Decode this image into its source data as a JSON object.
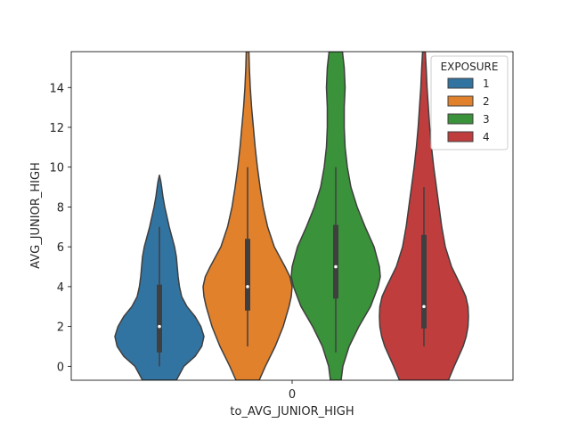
{
  "chart_data": {
    "type": "violin",
    "title": "",
    "xlabel": "to_AVG_JUNIOR_HIGH",
    "ylabel": "AVG_JUNIOR_HIGH",
    "x_ticks": [
      "0"
    ],
    "y_ticks": [
      0,
      2,
      4,
      6,
      8,
      10,
      12,
      14
    ],
    "ylim": [
      -0.7,
      15.8
    ],
    "legend": {
      "title": "EXPOSURE",
      "placement": "top-right"
    },
    "series": [
      {
        "name": "1",
        "color": "#3274a1",
        "min": 0,
        "q1": 0.7,
        "median": 2,
        "q3": 4.1,
        "max": 7,
        "kde_top": 9.6,
        "kde_bottom": -0.7,
        "profile": [
          [
            -0.7,
            0.38
          ],
          [
            0,
            0.55
          ],
          [
            0.5,
            0.8
          ],
          [
            1,
            0.95
          ],
          [
            1.5,
            1.0
          ],
          [
            2,
            0.93
          ],
          [
            2.5,
            0.8
          ],
          [
            3,
            0.62
          ],
          [
            3.5,
            0.5
          ],
          [
            4,
            0.45
          ],
          [
            4.5,
            0.42
          ],
          [
            5,
            0.4
          ],
          [
            5.5,
            0.38
          ],
          [
            6,
            0.34
          ],
          [
            6.5,
            0.28
          ],
          [
            7,
            0.22
          ],
          [
            7.5,
            0.17
          ],
          [
            8,
            0.12
          ],
          [
            8.5,
            0.08
          ],
          [
            9,
            0.05
          ],
          [
            9.3,
            0.03
          ],
          [
            9.6,
            0.0
          ]
        ]
      },
      {
        "name": "2",
        "color": "#e1812c",
        "min": 1,
        "q1": 2.8,
        "median": 4,
        "q3": 6.4,
        "max": 10,
        "kde_top": 15.8,
        "kde_bottom": -0.7,
        "profile": [
          [
            -0.7,
            0.26
          ],
          [
            0,
            0.4
          ],
          [
            1,
            0.62
          ],
          [
            2,
            0.8
          ],
          [
            3,
            0.93
          ],
          [
            3.5,
            0.98
          ],
          [
            4,
            1.0
          ],
          [
            4.5,
            0.95
          ],
          [
            5,
            0.84
          ],
          [
            6,
            0.6
          ],
          [
            7,
            0.45
          ],
          [
            8,
            0.35
          ],
          [
            9,
            0.28
          ],
          [
            10,
            0.22
          ],
          [
            11,
            0.17
          ],
          [
            12,
            0.13
          ],
          [
            13,
            0.09
          ],
          [
            14,
            0.06
          ],
          [
            15,
            0.04
          ],
          [
            15.8,
            0.03
          ]
        ]
      },
      {
        "name": "3",
        "color": "#3a923a",
        "min": 0.7,
        "q1": 3.4,
        "median": 5,
        "q3": 7.1,
        "max": 10,
        "kde_top": 15.8,
        "kde_bottom": -0.7,
        "profile": [
          [
            -0.7,
            0.12
          ],
          [
            0,
            0.16
          ],
          [
            1,
            0.3
          ],
          [
            2,
            0.52
          ],
          [
            3,
            0.78
          ],
          [
            4,
            0.95
          ],
          [
            4.5,
            1.0
          ],
          [
            5,
            0.98
          ],
          [
            6,
            0.86
          ],
          [
            7,
            0.66
          ],
          [
            8,
            0.48
          ],
          [
            9,
            0.34
          ],
          [
            10,
            0.26
          ],
          [
            11,
            0.21
          ],
          [
            12,
            0.19
          ],
          [
            13,
            0.19
          ],
          [
            14,
            0.21
          ],
          [
            15,
            0.19
          ],
          [
            15.8,
            0.15
          ]
        ]
      },
      {
        "name": "4",
        "color": "#c03d3e",
        "min": 1,
        "q1": 1.9,
        "median": 3,
        "q3": 6.6,
        "max": 9,
        "kde_top": 15.8,
        "kde_bottom": -0.7,
        "profile": [
          [
            -0.7,
            0.55
          ],
          [
            0,
            0.68
          ],
          [
            0.5,
            0.78
          ],
          [
            1,
            0.88
          ],
          [
            1.5,
            0.95
          ],
          [
            2,
            0.99
          ],
          [
            2.5,
            1.0
          ],
          [
            3,
            0.99
          ],
          [
            3.5,
            0.94
          ],
          [
            4,
            0.84
          ],
          [
            5,
            0.62
          ],
          [
            6,
            0.48
          ],
          [
            7,
            0.4
          ],
          [
            8,
            0.34
          ],
          [
            9,
            0.28
          ],
          [
            10,
            0.22
          ],
          [
            11,
            0.17
          ],
          [
            12,
            0.13
          ],
          [
            13,
            0.1
          ],
          [
            14,
            0.07
          ],
          [
            15,
            0.05
          ],
          [
            15.8,
            0.03
          ]
        ]
      }
    ]
  }
}
